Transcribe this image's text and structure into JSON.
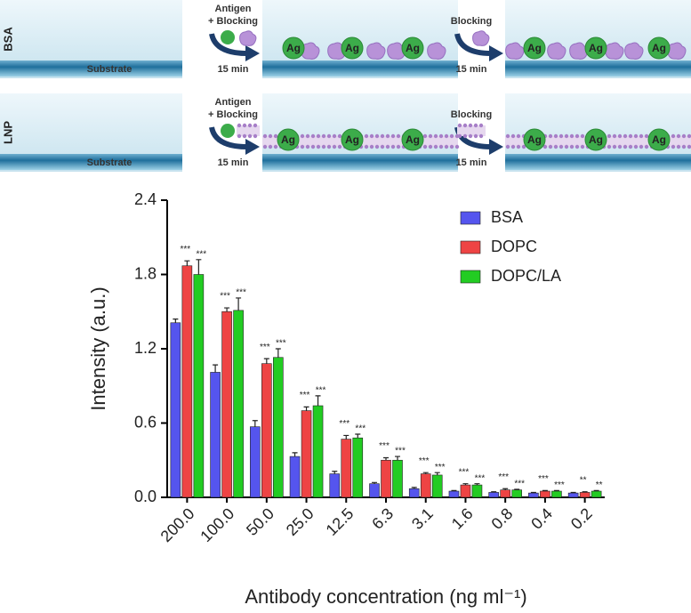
{
  "schematic": {
    "rows": [
      {
        "label": "BSA",
        "substrate": "Substrate",
        "step1": [
          "Antigen",
          "+ Blocking"
        ],
        "time1": "15 min",
        "step2": "Blocking",
        "time2": "15 min",
        "antigen": "Ag"
      },
      {
        "label": "LNP",
        "substrate": "Substrate",
        "step1": [
          "Antigen",
          "+ Blocking"
        ],
        "time1": "15 min",
        "step2": "Blocking",
        "time2": "15 min",
        "antigen": "Ag"
      }
    ]
  },
  "chart_data": {
    "type": "bar",
    "xlabel": "Antibody concentration (ng ml⁻¹)",
    "ylabel": "Intensity  (a.u.)",
    "categories": [
      "200.0",
      "100.0",
      "50.0",
      "25.0",
      "12.5",
      "6.3",
      "3.1",
      "1.6",
      "0.8",
      "0.4",
      "0.2"
    ],
    "series": [
      {
        "name": "BSA",
        "color": "#5555ee",
        "values": [
          1.41,
          1.01,
          0.57,
          0.33,
          0.19,
          0.11,
          0.07,
          0.05,
          0.04,
          0.035,
          0.035
        ],
        "errors": [
          0.03,
          0.06,
          0.05,
          0.03,
          0.02,
          0.01,
          0.01,
          0.005,
          0.005,
          0.005,
          0.005
        ]
      },
      {
        "name": "DOPC",
        "color": "#ee4444",
        "values": [
          1.87,
          1.5,
          1.08,
          0.7,
          0.47,
          0.3,
          0.19,
          0.1,
          0.06,
          0.05,
          0.04
        ],
        "errors": [
          0.04,
          0.03,
          0.04,
          0.03,
          0.03,
          0.02,
          0.01,
          0.01,
          0.01,
          0.005,
          0.005
        ],
        "significance": [
          "***",
          "***",
          "***",
          "***",
          "***",
          "***",
          "***",
          "***",
          "***",
          "***",
          "**"
        ]
      },
      {
        "name": "DOPC/LA",
        "color": "#22cc22",
        "values": [
          1.8,
          1.51,
          1.13,
          0.74,
          0.48,
          0.3,
          0.18,
          0.1,
          0.06,
          0.05,
          0.05
        ],
        "errors": [
          0.12,
          0.1,
          0.07,
          0.08,
          0.03,
          0.03,
          0.02,
          0.01,
          0.005,
          0.005,
          0.005
        ],
        "significance": [
          "***",
          "***",
          "***",
          "***",
          "***",
          "***",
          "***",
          "***",
          "***",
          "***",
          "**"
        ]
      }
    ],
    "ylim": [
      0,
      2.4
    ],
    "yticks": [
      {
        "value": 0,
        "label": "0.0"
      },
      0.6,
      1.2,
      1.8,
      2.4
    ],
    "legend": "upper right"
  }
}
